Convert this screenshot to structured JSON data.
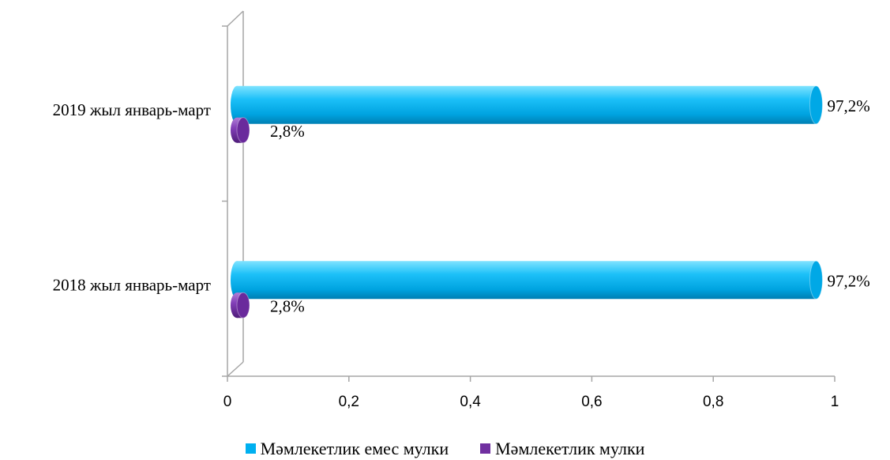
{
  "chart_data": {
    "type": "bar",
    "orientation": "horizontal",
    "style": "3d-cylinder",
    "categories": [
      "2019 жыл январь-март",
      "2018 жыл январь-март"
    ],
    "series": [
      {
        "name": "Мәмлекетлик емес мулки",
        "values": [
          0.972,
          0.972
        ],
        "labels": [
          "97,2%",
          "97,2%"
        ],
        "color": "#00B0F0"
      },
      {
        "name": "Мәмлекетлик мулки",
        "values": [
          0.028,
          0.028
        ],
        "labels": [
          "2,8%",
          "2,8%"
        ],
        "color": "#7030A0"
      }
    ],
    "xlim": [
      0,
      1
    ],
    "xticks": [
      "0",
      "0,2",
      "0,4",
      "0,6",
      "0,8",
      "1"
    ],
    "grid": false,
    "legend": "bottom"
  }
}
